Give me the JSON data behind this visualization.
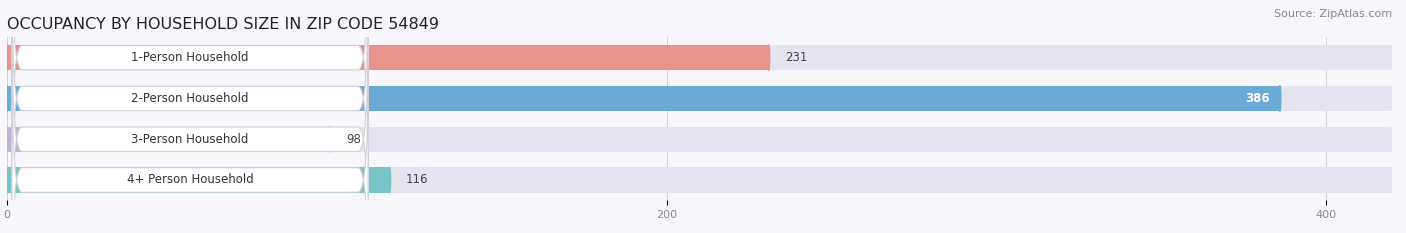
{
  "title": "OCCUPANCY BY HOUSEHOLD SIZE IN ZIP CODE 54849",
  "source": "Source: ZipAtlas.com",
  "categories": [
    "1-Person Household",
    "2-Person Household",
    "3-Person Household",
    "4+ Person Household"
  ],
  "values": [
    231,
    386,
    98,
    116
  ],
  "bar_colors": [
    "#e8928c",
    "#6aaad4",
    "#c4b2d4",
    "#76c4c4"
  ],
  "bar_bg_color": "#e4e4ee",
  "xlim_max": 420,
  "xticks": [
    0,
    200,
    400
  ],
  "title_fontsize": 11.5,
  "label_fontsize": 8.5,
  "value_fontsize": 8.5,
  "source_fontsize": 8,
  "background_color": "#f7f7fb",
  "label_bg_color": "#ffffff",
  "label_border_color": "#d0d0d8",
  "value_color_inside": "#ffffff",
  "value_color_outside": "#444444",
  "tick_color": "#888888"
}
